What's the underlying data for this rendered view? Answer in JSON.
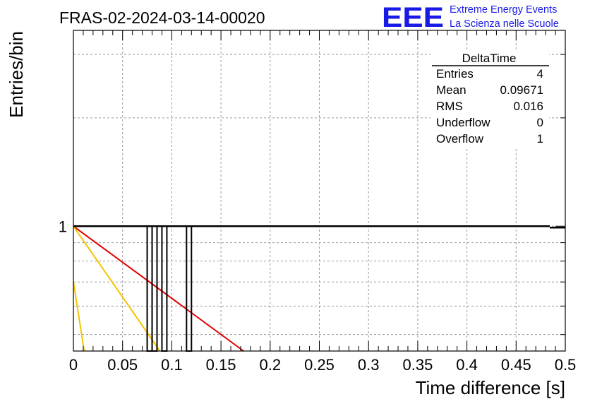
{
  "header": {
    "title": "FRAS-02-2024-03-14-00020",
    "logo_text": "EEE",
    "logo_line1": "Extreme Energy Events",
    "logo_line2": "La Scienza nelle Scuole"
  },
  "stats_box": {
    "title": "DeltaTime",
    "rows": [
      {
        "label": "Entries",
        "value": "4"
      },
      {
        "label": "Mean",
        "value": "0.09671"
      },
      {
        "label": "RMS",
        "value": "0.016"
      },
      {
        "label": "Underflow",
        "value": "0"
      },
      {
        "label": "Overflow",
        "value": "1"
      }
    ]
  },
  "colors": {
    "histogram": "#000000",
    "fit_red": "#e00000",
    "fit_yellow": "#f5c400",
    "grid": "#999999",
    "logo": "#1a1ae6"
  },
  "chart_data": {
    "type": "bar",
    "xlabel": "Time difference [s]",
    "ylabel": "Entries/bin",
    "xlim": [
      0,
      0.5
    ],
    "ylim": [
      0.45,
      3.5
    ],
    "ylog": true,
    "grid": true,
    "legend_position": "top-right",
    "x_ticks": [
      "0",
      "0.05",
      "0.1",
      "0.15",
      "0.2",
      "0.25",
      "0.3",
      "0.35",
      "0.4",
      "0.45",
      "0.5"
    ],
    "y_ticks": [
      "1"
    ],
    "bin_width": 0.005,
    "histogram_entries": [
      0.075,
      0.08,
      0.09,
      0.115
    ],
    "histogram_value": 1,
    "fits": [
      {
        "color": "red",
        "x": [
          0,
          0.173
        ],
        "y": [
          1,
          0.45
        ]
      },
      {
        "color": "yellow",
        "x": [
          0,
          0.088
        ],
        "y": [
          1,
          0.45
        ]
      },
      {
        "color": "yellow",
        "x": [
          0,
          0.011
        ],
        "y": [
          0.7,
          0.45
        ]
      }
    ]
  }
}
